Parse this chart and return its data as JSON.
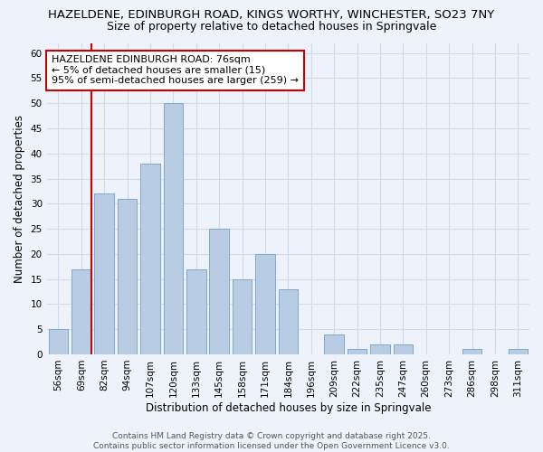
{
  "title": "HAZELDENE, EDINBURGH ROAD, KINGS WORTHY, WINCHESTER, SO23 7NY",
  "subtitle": "Size of property relative to detached houses in Springvale",
  "xlabel": "Distribution of detached houses by size in Springvale",
  "ylabel": "Number of detached properties",
  "bar_color": "#b8cce4",
  "bar_edge_color": "#7fa7cc",
  "grid_color": "#d0dcee",
  "background_color": "#eef2fa",
  "categories": [
    "56sqm",
    "69sqm",
    "82sqm",
    "94sqm",
    "107sqm",
    "120sqm",
    "133sqm",
    "145sqm",
    "158sqm",
    "171sqm",
    "184sqm",
    "196sqm",
    "209sqm",
    "222sqm",
    "235sqm",
    "247sqm",
    "260sqm",
    "273sqm",
    "286sqm",
    "298sqm",
    "311sqm"
  ],
  "values": [
    5,
    17,
    32,
    31,
    38,
    50,
    17,
    25,
    15,
    20,
    13,
    0,
    4,
    1,
    2,
    2,
    0,
    0,
    1,
    0,
    1
  ],
  "ylim": [
    0,
    62
  ],
  "yticks": [
    0,
    5,
    10,
    15,
    20,
    25,
    30,
    35,
    40,
    45,
    50,
    55,
    60
  ],
  "vline_x_idx": 1,
  "vline_color": "#cc0000",
  "annotation_text": "HAZELDENE EDINBURGH ROAD: 76sqm\n← 5% of detached houses are smaller (15)\n95% of semi-detached houses are larger (259) →",
  "annotation_box_color": "#ffffff",
  "annotation_box_edge": "#cc0000",
  "footer_text": "Contains HM Land Registry data © Crown copyright and database right 2025.\nContains public sector information licensed under the Open Government Licence v3.0.",
  "title_fontsize": 9.5,
  "subtitle_fontsize": 9,
  "axis_label_fontsize": 8.5,
  "tick_fontsize": 7.5,
  "annotation_fontsize": 8,
  "footer_fontsize": 6.5
}
